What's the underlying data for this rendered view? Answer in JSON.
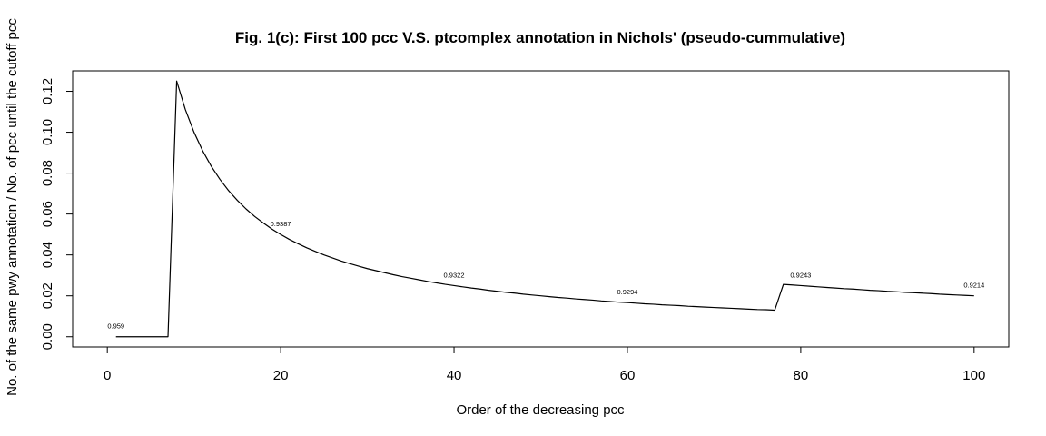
{
  "chart_data": {
    "type": "line",
    "title": "Fig. 1(c): First 100 pcc V.S. ptcomplex annotation in Nichols' (pseudo-cummulative)",
    "xlabel": "Order of the decreasing pcc",
    "ylabel": "No. of the same pwy annotation / No. of pcc until the  cutoff pcc",
    "xlim": [
      -4,
      104
    ],
    "ylim": [
      -0.005,
      0.13
    ],
    "x_ticks": [
      0,
      20,
      40,
      60,
      80,
      100
    ],
    "x_tick_labels": [
      "0",
      "20",
      "40",
      "60",
      "80",
      "100"
    ],
    "y_ticks": [
      0.0,
      0.02,
      0.04,
      0.06,
      0.08,
      0.1,
      0.12
    ],
    "y_tick_labels": [
      "0.00",
      "0.02",
      "0.04",
      "0.06",
      "0.08",
      "0.10",
      "0.12"
    ],
    "grid": false,
    "legend": "none",
    "series": [
      {
        "color": "#000000",
        "x": [
          1,
          2,
          3,
          4,
          5,
          6,
          7,
          8,
          9,
          10,
          11,
          12,
          13,
          14,
          15,
          16,
          17,
          18,
          19,
          20,
          21,
          22,
          23,
          24,
          25,
          26,
          27,
          28,
          29,
          30,
          31,
          32,
          33,
          34,
          35,
          36,
          37,
          38,
          39,
          40,
          41,
          42,
          43,
          44,
          45,
          46,
          47,
          48,
          49,
          50,
          51,
          52,
          53,
          54,
          55,
          56,
          57,
          58,
          59,
          60,
          61,
          62,
          63,
          64,
          65,
          66,
          67,
          68,
          69,
          70,
          71,
          72,
          73,
          74,
          75,
          76,
          77,
          78,
          79,
          80,
          81,
          82,
          83,
          84,
          85,
          86,
          87,
          88,
          89,
          90,
          91,
          92,
          93,
          94,
          95,
          96,
          97,
          98,
          99,
          100
        ],
        "y": [
          0,
          0,
          0,
          0,
          0,
          0,
          0,
          0.125,
          0.1111,
          0.1,
          0.0909,
          0.0833,
          0.0769,
          0.0714,
          0.0667,
          0.0625,
          0.0588,
          0.0556,
          0.0526,
          0.05,
          0.0476,
          0.0455,
          0.0435,
          0.0417,
          0.04,
          0.0385,
          0.037,
          0.0357,
          0.0345,
          0.0333,
          0.0323,
          0.0313,
          0.0303,
          0.0294,
          0.0286,
          0.0278,
          0.027,
          0.0263,
          0.0256,
          0.025,
          0.0244,
          0.0238,
          0.0233,
          0.0227,
          0.0222,
          0.0217,
          0.0213,
          0.0208,
          0.0204,
          0.02,
          0.0196,
          0.0192,
          0.0189,
          0.0185,
          0.0182,
          0.0179,
          0.0175,
          0.0172,
          0.0169,
          0.0167,
          0.0164,
          0.0161,
          0.0159,
          0.0156,
          0.0154,
          0.0152,
          0.0149,
          0.0147,
          0.0145,
          0.0143,
          0.0141,
          0.0139,
          0.0137,
          0.0135,
          0.0133,
          0.0132,
          0.013,
          0.0256,
          0.0253,
          0.025,
          0.0247,
          0.0244,
          0.0241,
          0.0238,
          0.0235,
          0.0233,
          0.023,
          0.0227,
          0.0225,
          0.0222,
          0.022,
          0.0217,
          0.0215,
          0.0213,
          0.0211,
          0.0208,
          0.0206,
          0.0204,
          0.0202,
          0.02
        ]
      }
    ],
    "annotations": [
      {
        "x": 1,
        "y": 0,
        "text": "0.959"
      },
      {
        "x": 20,
        "y": 0.05,
        "text": "0.9387"
      },
      {
        "x": 40,
        "y": 0.025,
        "text": "0.9322"
      },
      {
        "x": 60,
        "y": 0.0167,
        "text": "0.9294"
      },
      {
        "x": 80,
        "y": 0.025,
        "text": "0.9243"
      },
      {
        "x": 100,
        "y": 0.02,
        "text": "0.9214"
      }
    ]
  }
}
